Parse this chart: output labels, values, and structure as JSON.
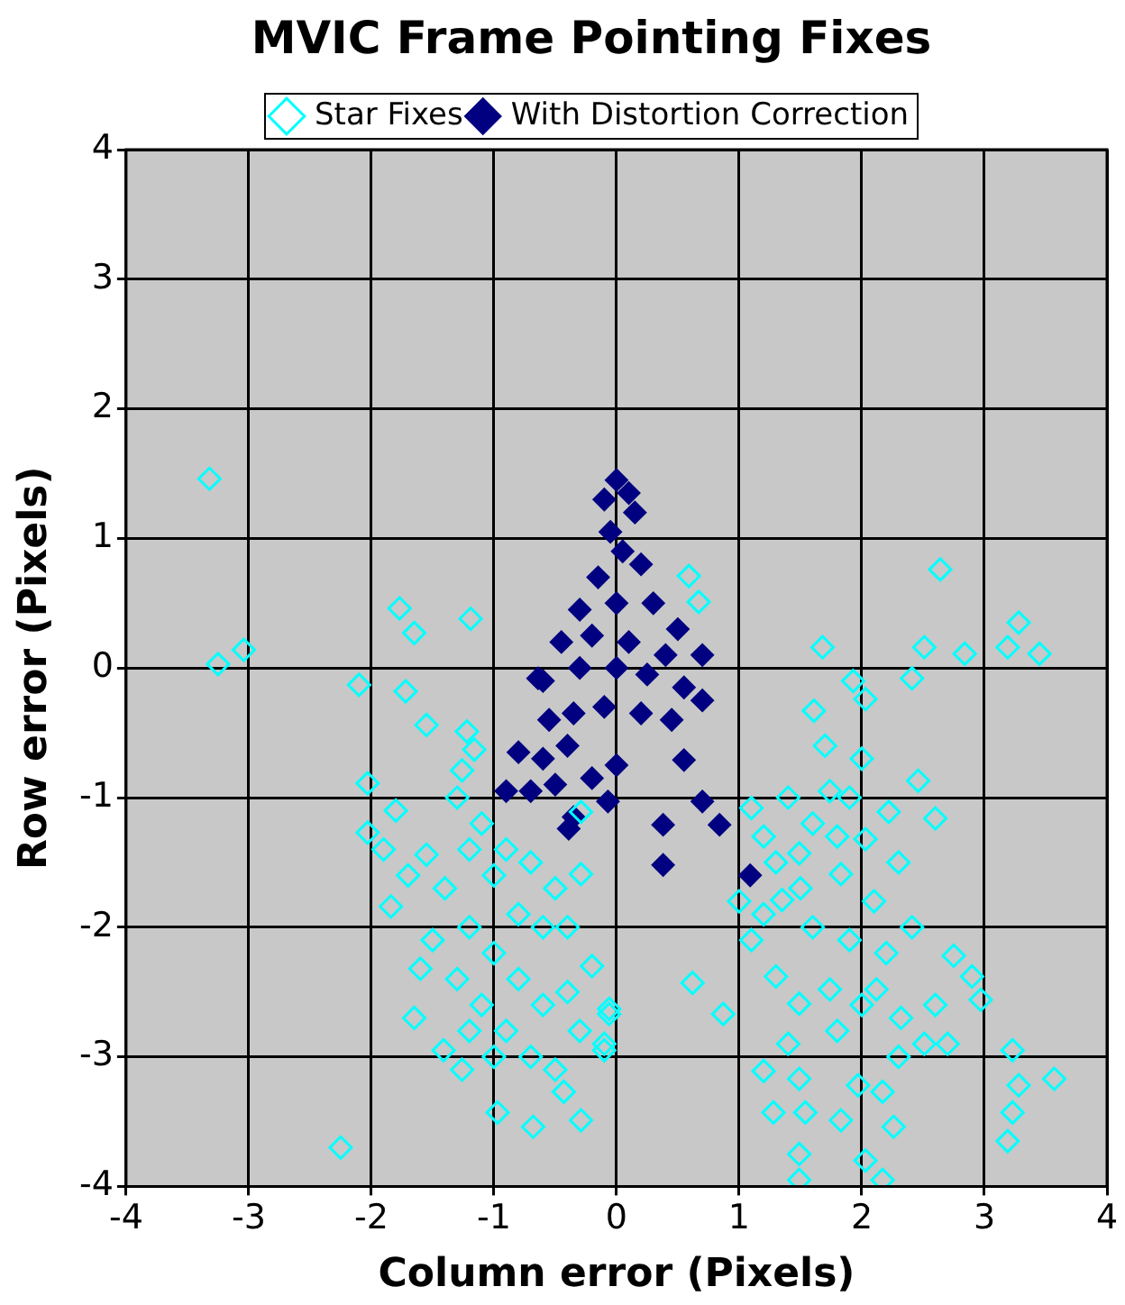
{
  "chart_data": {
    "type": "scatter",
    "title": "MVIC Frame Pointing Fixes",
    "xlabel": "Column error (Pixels)",
    "ylabel": "Row error (Pixels)",
    "xlim": [
      -4,
      4
    ],
    "ylim": [
      -4,
      4
    ],
    "xticks": [
      -4,
      -3,
      -2,
      -1,
      0,
      1,
      2,
      3,
      4
    ],
    "yticks": [
      -4,
      -3,
      -2,
      -1,
      0,
      1,
      2,
      3,
      4
    ],
    "grid": true,
    "legend": "top",
    "marker": "diamond",
    "series": [
      {
        "name": "Star Fixes",
        "color": "#00ffff",
        "x": [
          -3.32,
          -3.25,
          -3.04,
          -2.1,
          -1.77,
          -1.65,
          -1.19,
          -1.72,
          -1.55,
          -1.22,
          -2.03,
          -2.03,
          -2.25,
          -1.55,
          -1.84,
          -1.6,
          -1.65,
          -1.41,
          -1.26,
          -0.97,
          -0.68,
          -0.29,
          -0.43,
          -0.06,
          -0.1,
          -0.29,
          -0.29,
          -1.26,
          -1.16,
          -1.3,
          -1.1,
          -0.9,
          -0.7,
          -0.5,
          -0.4,
          -1.4,
          -1.2,
          -1.0,
          -0.8,
          -0.6,
          -1.3,
          -1.1,
          -0.9,
          -0.7,
          -0.5,
          -0.3,
          -0.2,
          -1.5,
          -1.7,
          -1.8,
          -1.9,
          -0.6,
          -0.8,
          -1.0,
          -1.2,
          -1.0,
          -1.2,
          -0.4,
          -0.1,
          0.59,
          0.67,
          2.64,
          1.68,
          2.51,
          2.84,
          3.28,
          3.19,
          3.45,
          2.41,
          1.61,
          2.03,
          1.93,
          2.46,
          2.6,
          1.1,
          1.35,
          1.74,
          2.03,
          1.83,
          1.49,
          2.22,
          2.75,
          2.9,
          2.97,
          2.41,
          0.62,
          0.87,
          -0.06,
          1.3,
          1.49,
          1.74,
          2.12,
          2.32,
          2.51,
          1.2,
          1.49,
          1.97,
          2.17,
          1.28,
          1.54,
          1.83,
          2.26,
          1.49,
          1.49,
          2.03,
          2.17,
          3.23,
          3.57,
          3.23,
          3.19,
          3.28,
          1.2,
          1.3,
          1.5,
          1.6,
          1.8,
          1.9,
          2.0,
          1.7,
          1.4,
          1.2,
          1.6,
          1.9,
          2.1,
          2.3,
          2.2,
          1.8,
          2.0,
          1.4,
          2.3,
          2.6,
          2.7,
          1.1,
          1.0
        ],
        "values": [
          1.46,
          0.03,
          0.14,
          -0.13,
          0.46,
          0.27,
          0.38,
          -0.18,
          -0.44,
          -0.49,
          -0.89,
          -1.27,
          -3.7,
          -1.44,
          -1.84,
          -2.32,
          -2.7,
          -2.95,
          -3.1,
          -3.43,
          -3.54,
          -3.49,
          -3.27,
          -2.63,
          -2.95,
          -1.59,
          -1.11,
          -0.79,
          -0.63,
          -1.0,
          -1.2,
          -1.4,
          -1.5,
          -1.7,
          -2.0,
          -1.7,
          -2.0,
          -2.2,
          -2.4,
          -2.6,
          -2.4,
          -2.6,
          -2.8,
          -3.0,
          -3.1,
          -2.8,
          -2.3,
          -2.1,
          -1.6,
          -1.1,
          -1.4,
          -2.0,
          -1.9,
          -1.6,
          -1.4,
          -3.0,
          -2.8,
          -2.5,
          -2.9,
          0.71,
          0.51,
          0.76,
          0.16,
          0.16,
          0.11,
          0.35,
          0.16,
          0.11,
          -0.08,
          -0.33,
          -0.24,
          -0.1,
          -0.87,
          -1.16,
          -1.08,
          -1.79,
          -0.95,
          -1.32,
          -1.59,
          -1.43,
          -1.11,
          -2.22,
          -2.38,
          -2.56,
          -2.0,
          -2.43,
          -2.67,
          -2.67,
          -2.38,
          -2.59,
          -2.48,
          -2.48,
          -2.7,
          -2.9,
          -3.11,
          -3.17,
          -3.22,
          -3.27,
          -3.43,
          -3.43,
          -3.49,
          -3.54,
          -3.75,
          -3.95,
          -3.8,
          -3.95,
          -2.95,
          -3.17,
          -3.43,
          -3.65,
          -3.22,
          -1.3,
          -1.5,
          -1.7,
          -1.2,
          -1.3,
          -1.0,
          -0.7,
          -0.6,
          -1.0,
          -1.9,
          -2.0,
          -2.1,
          -1.8,
          -1.5,
          -2.2,
          -2.8,
          -2.6,
          -2.9,
          -3.0,
          -2.6,
          -2.9,
          -2.1,
          -1.8
        ]
      },
      {
        "name": "With Distortion Correction",
        "color": "#000080",
        "x": [
          0,
          -0.1,
          0.1,
          0.15,
          -0.05,
          0.05,
          -0.15,
          0.2,
          -0.3,
          0,
          0.3,
          0.5,
          -0.45,
          -0.2,
          0.1,
          0.4,
          0.7,
          -0.6,
          -0.3,
          0,
          0.25,
          0.55,
          -0.1,
          0.2,
          0.45,
          0.7,
          -0.55,
          -0.35,
          -0.8,
          -0.6,
          -0.4,
          -0.9,
          -0.7,
          -0.5,
          -0.2,
          0,
          -0.35,
          0.55,
          -0.64,
          -0.39,
          0.7,
          0.84,
          0.38,
          0.38,
          1.09,
          -0.07
        ],
        "values": [
          1.45,
          1.3,
          1.35,
          1.2,
          1.05,
          0.9,
          0.7,
          0.8,
          0.45,
          0.5,
          0.5,
          0.3,
          0.2,
          0.25,
          0.2,
          0.1,
          0.1,
          -0.1,
          0,
          0,
          -0.05,
          -0.15,
          -0.3,
          -0.35,
          -0.4,
          -0.25,
          -0.4,
          -0.35,
          -0.65,
          -0.7,
          -0.6,
          -0.95,
          -0.95,
          -0.9,
          -0.85,
          -0.75,
          -1.15,
          -0.71,
          -0.08,
          -1.24,
          -1.03,
          -1.21,
          -1.21,
          -1.52,
          -1.6,
          -1.03
        ]
      }
    ]
  }
}
